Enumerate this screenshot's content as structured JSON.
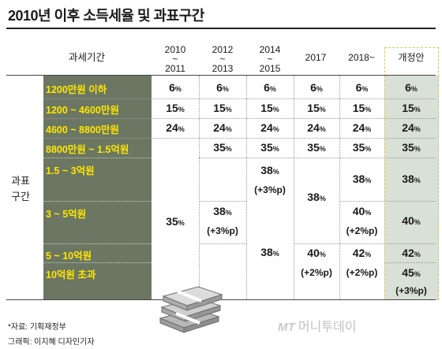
{
  "title": "2010년 이후 소득세율 및 과표구간",
  "header": {
    "category": "과세기간",
    "periods": [
      {
        "top": "2010",
        "tilde": "~",
        "bottom": "2011"
      },
      {
        "top": "2012",
        "tilde": "~",
        "bottom": "2013"
      },
      {
        "top": "2014",
        "tilde": "~",
        "bottom": "2015"
      },
      {
        "single": "2017"
      },
      {
        "single": "2018~"
      },
      {
        "single": "개정안"
      }
    ]
  },
  "group_label": [
    "과표",
    "구간"
  ],
  "rows": [
    "1200만원 이하",
    "1200 ~ 4600만원",
    "4600 ~ 8800만원",
    "8800만원 ~ 1.5억원",
    "1.5 ~ 3억원",
    "3 ~ 5억원",
    "5 ~ 10억원",
    "10억원 초과"
  ],
  "rates": {
    "p2010": {
      "r1": "6",
      "r2": "15",
      "r3": "24",
      "merged": "35"
    },
    "p2012": {
      "r1": "6",
      "r2": "15",
      "r3": "24",
      "r4": "35",
      "r5": "38",
      "r5_note": "(+3%p)"
    },
    "p2014": {
      "r1": "6",
      "r2": "15",
      "r3": "24",
      "r4": "35",
      "r5": "38",
      "r5_note": "(+3%p)",
      "r6": "38"
    },
    "p2017": {
      "r1": "6",
      "r2": "15",
      "r3": "24",
      "r4": "35",
      "r5": "38",
      "r6": "40",
      "r6_note": "(+2%p)"
    },
    "p2018": {
      "r1": "6",
      "r2": "15",
      "r3": "24",
      "r4": "35",
      "r5": "38",
      "r6": "40",
      "r6_note": "(+2%p)",
      "r7": "42",
      "r7_note": "(+2%p)"
    },
    "proposal": {
      "r1": "6",
      "r2": "15",
      "r3": "24",
      "r4": "35",
      "r5": "38",
      "r6": "40",
      "r7": "42",
      "r8": "45",
      "r8_note": "(+3%p)"
    }
  },
  "percent_sign": "%",
  "footer": {
    "source": "*자료: 기획재정부",
    "graphic": "그래픽: 이지혜 디자인기자"
  },
  "logo": {
    "mt": "MT",
    "brand": "머니투데이"
  }
}
